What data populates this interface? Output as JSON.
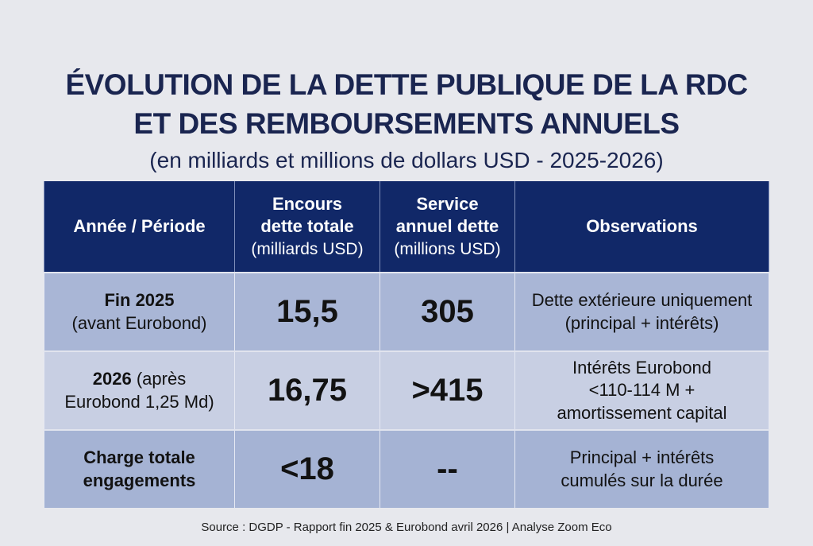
{
  "header": {
    "title_line1": "ÉVOLUTION DE LA DETTE PUBLIQUE DE LA RDC",
    "title_line2": "ET DES REMBOURSEMENTS ANNUELS",
    "subtitle": "(en milliards et millions de dollars USD - 2025-2026)"
  },
  "table": {
    "columns": [
      {
        "label": "Année / Période",
        "label2": "",
        "unit": ""
      },
      {
        "label": "Encours",
        "label2": "dette totale",
        "unit": "(milliards USD)"
      },
      {
        "label": "Service",
        "label2": "annuel dette",
        "unit": "(millions USD)"
      },
      {
        "label": "Observations",
        "label2": "",
        "unit": ""
      }
    ],
    "rows": [
      {
        "period_bold": "Fin 2025",
        "period_rest": "(avant Eurobond)",
        "debt_stock": "15,5",
        "debt_service": "305",
        "obs_line1": "Dette extérieure uniquement",
        "obs_line2": "(principal + intérêts)",
        "obs_line3": ""
      },
      {
        "period_bold": "2026",
        "period_rest_inline": " (après",
        "period_rest": "Eurobond 1,25 Md)",
        "debt_stock": "16,75",
        "debt_service": ">415",
        "obs_line1": "Intérêts Eurobond",
        "obs_line2": "<110-114 M +",
        "obs_line3": "amortissement capital"
      },
      {
        "period_bold": "Charge totale",
        "period_rest": "engagements",
        "debt_stock": "<18",
        "debt_service": "--",
        "obs_line1": "Principal + intérêts",
        "obs_line2": "cumulés sur la durée",
        "obs_line3": ""
      }
    ]
  },
  "footer": {
    "source": "Source : DGDP - Rapport fin 2025 & Eurobond avril 2026 | Analyse Zoom Eco"
  },
  "colors": {
    "header_bg": "#112868",
    "title_text": "#1a2550",
    "row_dark": "#a9b6d6",
    "row_light": "#c8cfe3",
    "page_bg": "#e7e8ed"
  }
}
